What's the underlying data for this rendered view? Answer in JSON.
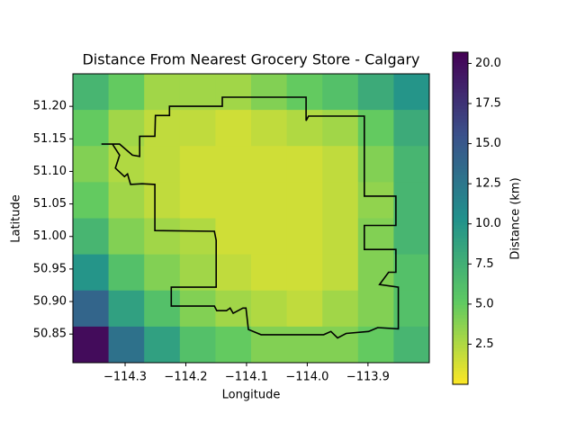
{
  "chart_data": {
    "type": "heatmap",
    "title": "Distance From Nearest Grocery Store - Calgary",
    "xlabel": "Longitude",
    "ylabel": "Latitude",
    "colorbar_label": "Distance (km)",
    "colormap": "viridis_r",
    "xlim": [
      -114.386,
      -113.799
    ],
    "ylim": [
      50.806,
      51.25
    ],
    "xticks": [
      {
        "value": -114.3,
        "label": "−114.3"
      },
      {
        "value": -114.2,
        "label": "−114.2"
      },
      {
        "value": -114.1,
        "label": "−114.1"
      },
      {
        "value": -114.0,
        "label": "−114.0"
      },
      {
        "value": -113.9,
        "label": "−113.9"
      }
    ],
    "yticks": [
      {
        "value": 50.85,
        "label": "50.85"
      },
      {
        "value": 50.9,
        "label": "50.90"
      },
      {
        "value": 50.95,
        "label": "50.95"
      },
      {
        "value": 51.0,
        "label": "51.00"
      },
      {
        "value": 51.05,
        "label": "51.05"
      },
      {
        "value": 51.1,
        "label": "51.10"
      },
      {
        "value": 51.15,
        "label": "51.15"
      },
      {
        "value": 51.2,
        "label": "51.20"
      }
    ],
    "clim": [
      0,
      20.7
    ],
    "cticks": [
      2.5,
      {
        "value": 5,
        "label": "5.0"
      },
      7.5,
      {
        "value": 10,
        "label": "10.0"
      },
      12.5,
      {
        "value": 15,
        "label": "15.0"
      },
      17.5,
      {
        "value": 20,
        "label": "20.0"
      }
    ],
    "values": [
      [
        7,
        5,
        3,
        3,
        3,
        4,
        5,
        6,
        8,
        10
      ],
      [
        5,
        3,
        2,
        2,
        1.5,
        2,
        2.5,
        3,
        5,
        8
      ],
      [
        4,
        2.5,
        2,
        1.5,
        1.5,
        1.5,
        1.5,
        2,
        4,
        7
      ],
      [
        5,
        3,
        2,
        1.5,
        1.5,
        1.5,
        1.5,
        2,
        3.5,
        7
      ],
      [
        7,
        4,
        3,
        2.5,
        1.5,
        1.5,
        1.5,
        2,
        4,
        7
      ],
      [
        10,
        6,
        4,
        3,
        2,
        1.5,
        1.5,
        2,
        4,
        6
      ],
      [
        14,
        9,
        6,
        4,
        3,
        2.5,
        2,
        3,
        4,
        6
      ],
      [
        20,
        13,
        9,
        6,
        5,
        4,
        4,
        4,
        5,
        7
      ]
    ],
    "boundary": {
      "color": "#000000",
      "x": [
        -114.339,
        -114.321,
        -114.309,
        -114.316,
        -114.301,
        -114.296,
        -114.291,
        -114.272,
        -114.251,
        -114.251,
        -114.153,
        -114.15,
        -114.15,
        -114.224,
        -114.224,
        -114.153,
        -114.149,
        -114.133,
        -114.127,
        -114.122,
        -114.106,
        -114.101,
        -114.097,
        -114.076,
        -113.973,
        -113.961,
        -113.95,
        -113.936,
        -113.899,
        -113.884,
        -113.85,
        -113.85,
        -113.881,
        -113.866,
        -113.854,
        -113.854,
        -113.906,
        -113.906,
        -113.854,
        -113.854,
        -113.906,
        -113.906,
        -113.998,
        -114.002,
        -114.002,
        -114.14,
        -114.14,
        -114.227,
        -114.227,
        -114.25,
        -114.251,
        -114.276,
        -114.276,
        -114.288,
        -114.309,
        -114.339
      ],
      "y": [
        51.142,
        51.142,
        51.125,
        51.105,
        51.092,
        51.096,
        51.08,
        51.081,
        51.08,
        51.009,
        51.008,
        50.994,
        50.922,
        50.922,
        50.893,
        50.893,
        50.886,
        50.886,
        50.89,
        50.882,
        50.89,
        50.89,
        50.857,
        50.849,
        50.849,
        50.854,
        50.844,
        50.851,
        50.854,
        50.86,
        50.858,
        50.922,
        50.926,
        50.945,
        50.945,
        50.98,
        50.98,
        51.017,
        51.017,
        51.062,
        51.062,
        51.185,
        51.185,
        51.178,
        51.214,
        51.214,
        51.2,
        51.2,
        51.186,
        51.186,
        51.154,
        51.154,
        51.123,
        51.125,
        51.142,
        51.142
      ]
    }
  }
}
